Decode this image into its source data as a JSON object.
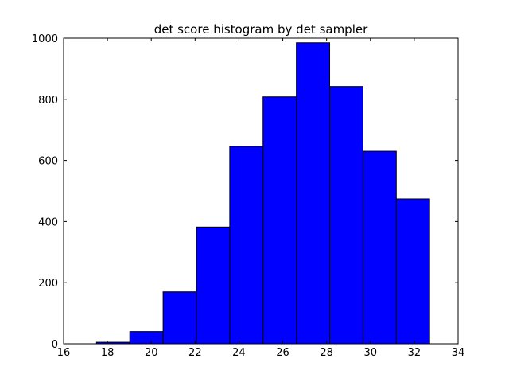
{
  "chart_data": {
    "type": "bar",
    "title": "det score histogram by det sampler",
    "xlabel": "",
    "ylabel": "",
    "xlim": [
      16,
      34
    ],
    "ylim": [
      0,
      1000
    ],
    "xticks": [
      16,
      18,
      20,
      22,
      24,
      26,
      28,
      30,
      32,
      34
    ],
    "yticks": [
      0,
      200,
      400,
      600,
      800,
      1000
    ],
    "bar_color": "#0000ff",
    "grid": false,
    "bins": [
      {
        "x0": 17.5,
        "x1": 19.02,
        "count": 5
      },
      {
        "x0": 19.02,
        "x1": 20.54,
        "count": 40
      },
      {
        "x0": 20.54,
        "x1": 22.06,
        "count": 170
      },
      {
        "x0": 22.06,
        "x1": 23.58,
        "count": 382
      },
      {
        "x0": 23.58,
        "x1": 25.1,
        "count": 646
      },
      {
        "x0": 25.1,
        "x1": 26.62,
        "count": 808
      },
      {
        "x0": 26.62,
        "x1": 28.14,
        "count": 985
      },
      {
        "x0": 28.14,
        "x1": 29.66,
        "count": 842
      },
      {
        "x0": 29.66,
        "x1": 31.18,
        "count": 630
      },
      {
        "x0": 31.18,
        "x1": 32.7,
        "count": 474
      }
    ]
  }
}
